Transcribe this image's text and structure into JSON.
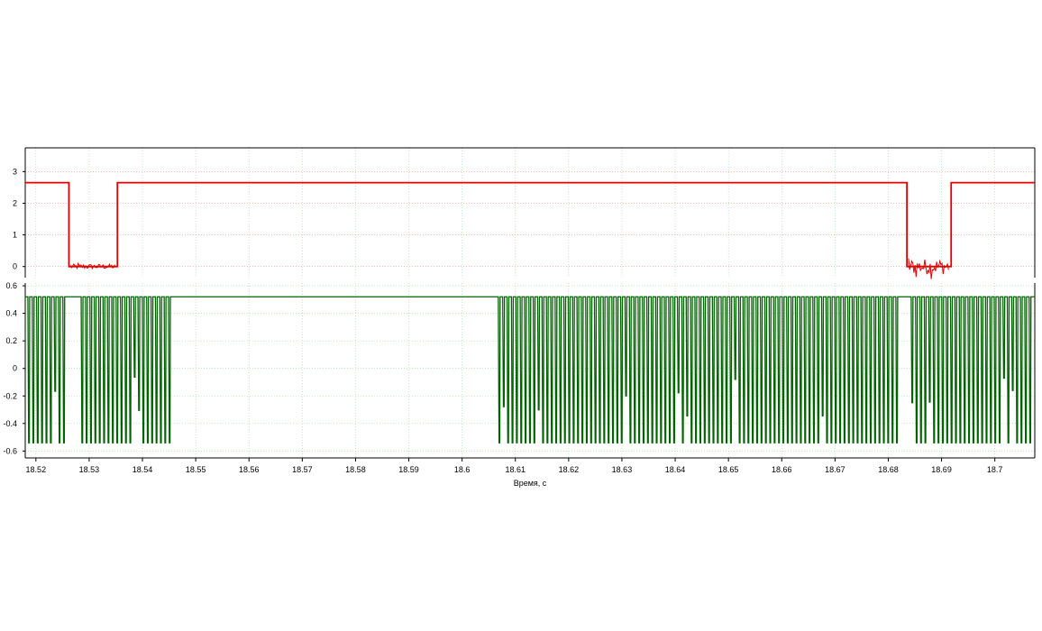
{
  "chart_data": {
    "type": "line",
    "title": "",
    "xlabel": "Время, с",
    "colors": {
      "top_trace": "#e00000",
      "bottom_trace": "#006400",
      "grid_top": "#f08a8a",
      "grid_bottom": "#9ed89e",
      "axis": "#000000"
    },
    "grid": true,
    "x_axis": {
      "range": [
        18.518,
        18.7075
      ],
      "ticks": [
        {
          "value": 18.52,
          "label": "18.52"
        },
        {
          "value": 18.53,
          "label": "18.53"
        },
        {
          "value": 18.54,
          "label": "18.54"
        },
        {
          "value": 18.55,
          "label": "18.55"
        },
        {
          "value": 18.56,
          "label": "18.56"
        },
        {
          "value": 18.57,
          "label": "18.57"
        },
        {
          "value": 18.58,
          "label": "18.58"
        },
        {
          "value": 18.59,
          "label": "18.59"
        },
        {
          "value": 18.6,
          "label": "18.6"
        },
        {
          "value": 18.61,
          "label": "18.61"
        },
        {
          "value": 18.62,
          "label": "18.62"
        },
        {
          "value": 18.63,
          "label": "18.63"
        },
        {
          "value": 18.64,
          "label": "18.64"
        },
        {
          "value": 18.65,
          "label": "18.65"
        },
        {
          "value": 18.66,
          "label": "18.66"
        },
        {
          "value": 18.67,
          "label": "18.67"
        },
        {
          "value": 18.68,
          "label": "18.68"
        },
        {
          "value": 18.69,
          "label": "18.69"
        },
        {
          "value": 18.7,
          "label": "18.7"
        }
      ]
    },
    "panels": [
      {
        "name": "",
        "ylim": [
          -0.35,
          3.75
        ],
        "yticks": [
          {
            "value": 3,
            "label": "3"
          },
          {
            "value": 2,
            "label": "2"
          },
          {
            "value": 1,
            "label": "1"
          },
          {
            "value": 0,
            "label": "0"
          }
        ],
        "series": [
          {
            "name": "",
            "color": "#e00000",
            "points": [
              [
                18.518,
                2.65
              ],
              [
                18.5262,
                2.65
              ],
              [
                18.5262,
                0.0
              ],
              [
                18.5353,
                0.0
              ],
              [
                18.5353,
                2.65
              ],
              [
                18.6835,
                2.65
              ],
              [
                18.6835,
                0.0
              ],
              [
                18.6918,
                0.0
              ],
              [
                18.6918,
                2.65
              ],
              [
                18.7075,
                2.65
              ]
            ],
            "noise_segments": [
              {
                "x": [
                  18.5265,
                  18.535
                ],
                "amplitude": 0.08
              },
              {
                "x": [
                  18.6838,
                  18.6915
                ],
                "amplitude": 0.25
              }
            ]
          }
        ]
      },
      {
        "name": "",
        "ylim": [
          -0.65,
          0.62
        ],
        "yticks": [
          {
            "value": 0.6,
            "label": "0.6"
          },
          {
            "value": 0.4,
            "label": "0.4"
          },
          {
            "value": 0.2,
            "label": "0.2"
          },
          {
            "value": 0,
            "label": "0"
          },
          {
            "value": -0.2,
            "label": "-0.2"
          },
          {
            "value": -0.4,
            "label": "-0.4"
          },
          {
            "value": -0.6,
            "label": "-0.6"
          }
        ],
        "series": [
          {
            "name": "",
            "color": "#006400",
            "high": 0.52,
            "low": -0.54,
            "pulse_period": 0.00082,
            "pulse_width": 0.00034,
            "pulse_bursts": [
              {
                "x": [
                  18.5185,
                  18.5255
                ]
              },
              {
                "x": [
                  18.5285,
                  18.5455
                ]
              },
              {
                "x": [
                  18.6068,
                  18.682
                ]
              },
              {
                "x": [
                  18.6843,
                  18.7075
                ]
              }
            ],
            "idle_high": [
              {
                "x": [
                  18.5455,
                  18.6068
                ]
              },
              {
                "x": [
                  18.682,
                  18.6843
                ]
              }
            ]
          }
        ]
      }
    ]
  }
}
